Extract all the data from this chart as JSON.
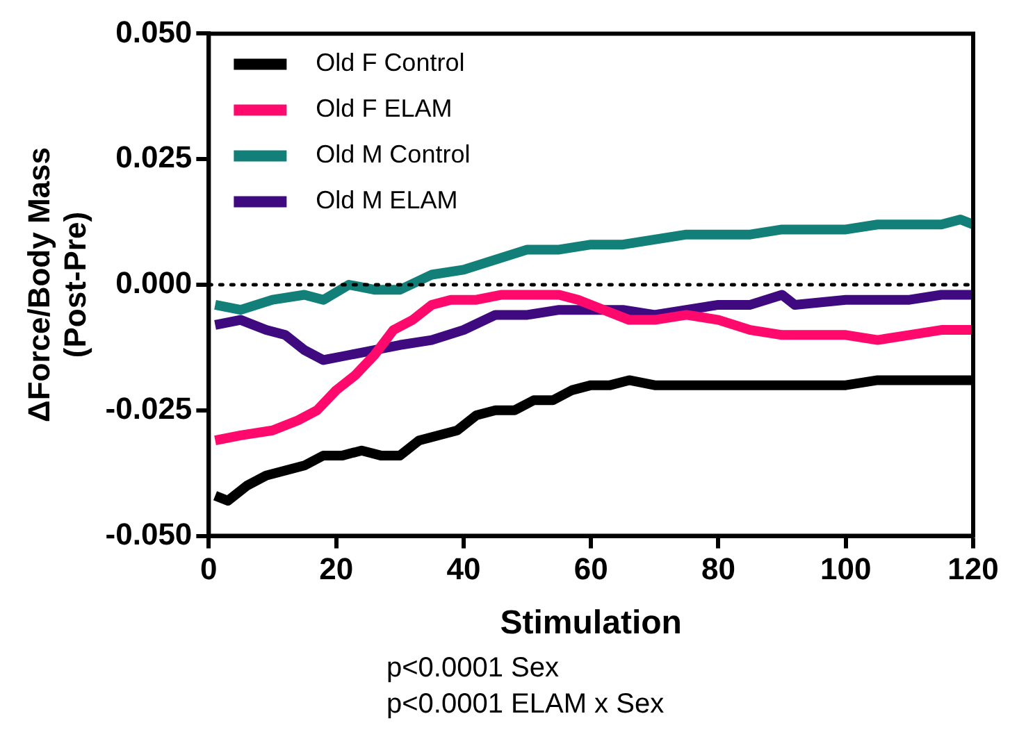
{
  "chart_data": {
    "type": "line",
    "xlabel": "Stimulation",
    "ylabel": "ΔForce/Body Mass (Post-Pre)",
    "annotations": [
      "p<0.0001 Sex",
      "p<0.0001 ELAM x Sex"
    ],
    "xlim": [
      0,
      120
    ],
    "xticks": [
      0,
      20,
      40,
      60,
      80,
      100,
      120
    ],
    "ylim": [
      -0.05,
      0.05
    ],
    "yticks": [
      {
        "value": -0.05,
        "label": "-0.050"
      },
      {
        "value": -0.025,
        "label": "-0.025"
      },
      {
        "value": 0,
        "label": "0.000"
      },
      {
        "value": 0.025,
        "label": "0.025"
      },
      {
        "value": 0.05,
        "label": "0.050"
      }
    ],
    "grid": false,
    "legend": "top left",
    "marker": "none",
    "line_style": "solid",
    "ref_lines": [
      {
        "axis": "y",
        "value": 0,
        "color": "#000000",
        "line_style": "dotted"
      }
    ],
    "series": [
      {
        "name": "Old F Control",
        "color": "#000000",
        "x": [
          1,
          3,
          6,
          9,
          12,
          15,
          18,
          21,
          24,
          27,
          30,
          33,
          36,
          39,
          42,
          45,
          48,
          51,
          54,
          57,
          60,
          63,
          66,
          70,
          75,
          80,
          85,
          90,
          95,
          100,
          105,
          110,
          115,
          120
        ],
        "values": [
          -0.042,
          -0.043,
          -0.04,
          -0.038,
          -0.037,
          -0.036,
          -0.034,
          -0.034,
          -0.033,
          -0.034,
          -0.034,
          -0.031,
          -0.03,
          -0.029,
          -0.026,
          -0.025,
          -0.025,
          -0.023,
          -0.023,
          -0.021,
          -0.02,
          -0.02,
          -0.019,
          -0.02,
          -0.02,
          -0.02,
          -0.02,
          -0.02,
          -0.02,
          -0.02,
          -0.019,
          -0.019,
          -0.019,
          -0.019
        ]
      },
      {
        "name": "Old F ELAM",
        "color": "#ff0a6c",
        "x": [
          1,
          5,
          10,
          14,
          17,
          20,
          23,
          26,
          29,
          32,
          35,
          38,
          42,
          46,
          50,
          55,
          58,
          62,
          66,
          70,
          75,
          80,
          85,
          90,
          95,
          100,
          105,
          110,
          115,
          120
        ],
        "values": [
          -0.031,
          -0.03,
          -0.029,
          -0.027,
          -0.025,
          -0.021,
          -0.018,
          -0.014,
          -0.009,
          -0.007,
          -0.004,
          -0.003,
          -0.003,
          -0.002,
          -0.002,
          -0.002,
          -0.003,
          -0.005,
          -0.007,
          -0.007,
          -0.006,
          -0.007,
          -0.009,
          -0.01,
          -0.01,
          -0.01,
          -0.011,
          -0.01,
          -0.009,
          -0.009
        ]
      },
      {
        "name": "Old M Control",
        "color": "#128079",
        "x": [
          1,
          5,
          10,
          15,
          18,
          22,
          26,
          30,
          35,
          40,
          45,
          50,
          55,
          60,
          65,
          70,
          75,
          80,
          85,
          90,
          95,
          100,
          105,
          110,
          115,
          118,
          120
        ],
        "values": [
          -0.004,
          -0.005,
          -0.003,
          -0.002,
          -0.003,
          0.0,
          -0.001,
          -0.001,
          0.002,
          0.003,
          0.005,
          0.007,
          0.007,
          0.008,
          0.008,
          0.009,
          0.01,
          0.01,
          0.01,
          0.011,
          0.011,
          0.011,
          0.012,
          0.012,
          0.012,
          0.013,
          0.012
        ]
      },
      {
        "name": "Old M ELAM",
        "color": "#3f0a80",
        "x": [
          1,
          5,
          9,
          12,
          15,
          18,
          22,
          26,
          30,
          35,
          40,
          45,
          50,
          55,
          60,
          65,
          70,
          75,
          80,
          85,
          90,
          92,
          100,
          105,
          110,
          115,
          120
        ],
        "values": [
          -0.008,
          -0.007,
          -0.009,
          -0.01,
          -0.013,
          -0.015,
          -0.014,
          -0.013,
          -0.012,
          -0.011,
          -0.009,
          -0.006,
          -0.006,
          -0.005,
          -0.005,
          -0.005,
          -0.006,
          -0.005,
          -0.004,
          -0.004,
          -0.002,
          -0.004,
          -0.003,
          -0.003,
          -0.003,
          -0.002,
          -0.002
        ]
      }
    ]
  }
}
